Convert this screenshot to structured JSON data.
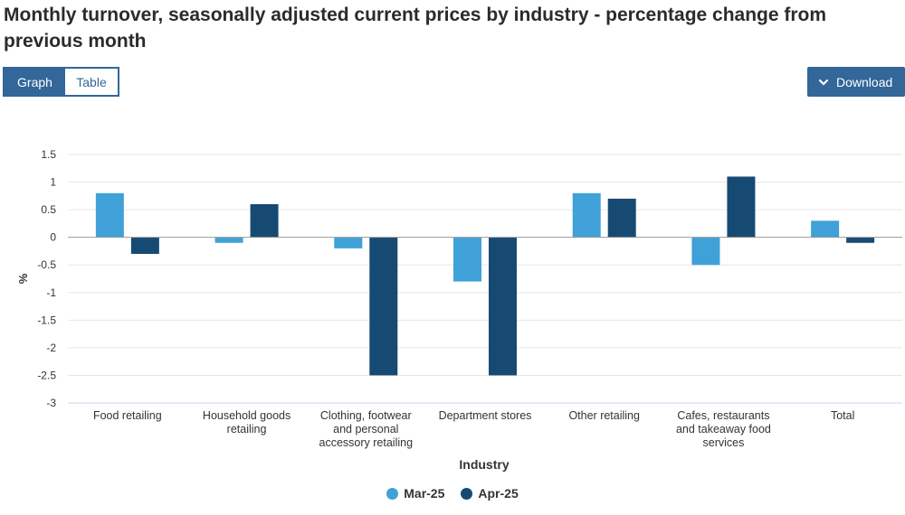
{
  "title": "Monthly turnover, seasonally adjusted current prices by industry - percentage change from previous month",
  "toggle": {
    "graph_label": "Graph",
    "table_label": "Table"
  },
  "download_label": "Download",
  "colors": {
    "mar": "#3fa1d8",
    "apr": "#174a73",
    "accent": "#336699"
  },
  "chart_data": {
    "type": "bar",
    "title": "Monthly turnover, seasonally adjusted current prices by industry - percentage change from previous month",
    "xlabel": "Industry",
    "ylabel": "%",
    "ylim": [
      -3,
      1.5
    ],
    "yticks": [
      1.5,
      1,
      0.5,
      0,
      -0.5,
      -1,
      -1.5,
      -2,
      -2.5,
      -3
    ],
    "ytick_labels": [
      "1.5",
      "1",
      "0.5",
      "0",
      "-0.5",
      "-1",
      "-1.5",
      "-2",
      "-2.5",
      "-3"
    ],
    "categories": [
      [
        "Food retailing"
      ],
      [
        "Household goods",
        "retailing"
      ],
      [
        "Clothing, footwear",
        "and personal",
        "accessory retailing"
      ],
      [
        "Department stores"
      ],
      [
        "Other retailing"
      ],
      [
        "Cafes, restaurants",
        "and takeaway food",
        "services"
      ],
      [
        "Total"
      ]
    ],
    "series": [
      {
        "name": "Mar-25",
        "color": "#3fa1d8",
        "values": [
          0.8,
          -0.1,
          -0.2,
          -0.8,
          0.8,
          -0.5,
          0.3
        ]
      },
      {
        "name": "Apr-25",
        "color": "#174a73",
        "values": [
          -0.3,
          0.6,
          -2.5,
          -2.5,
          0.7,
          1.1,
          -0.1
        ]
      }
    ],
    "grid": true,
    "legend_position": "bottom-center"
  }
}
